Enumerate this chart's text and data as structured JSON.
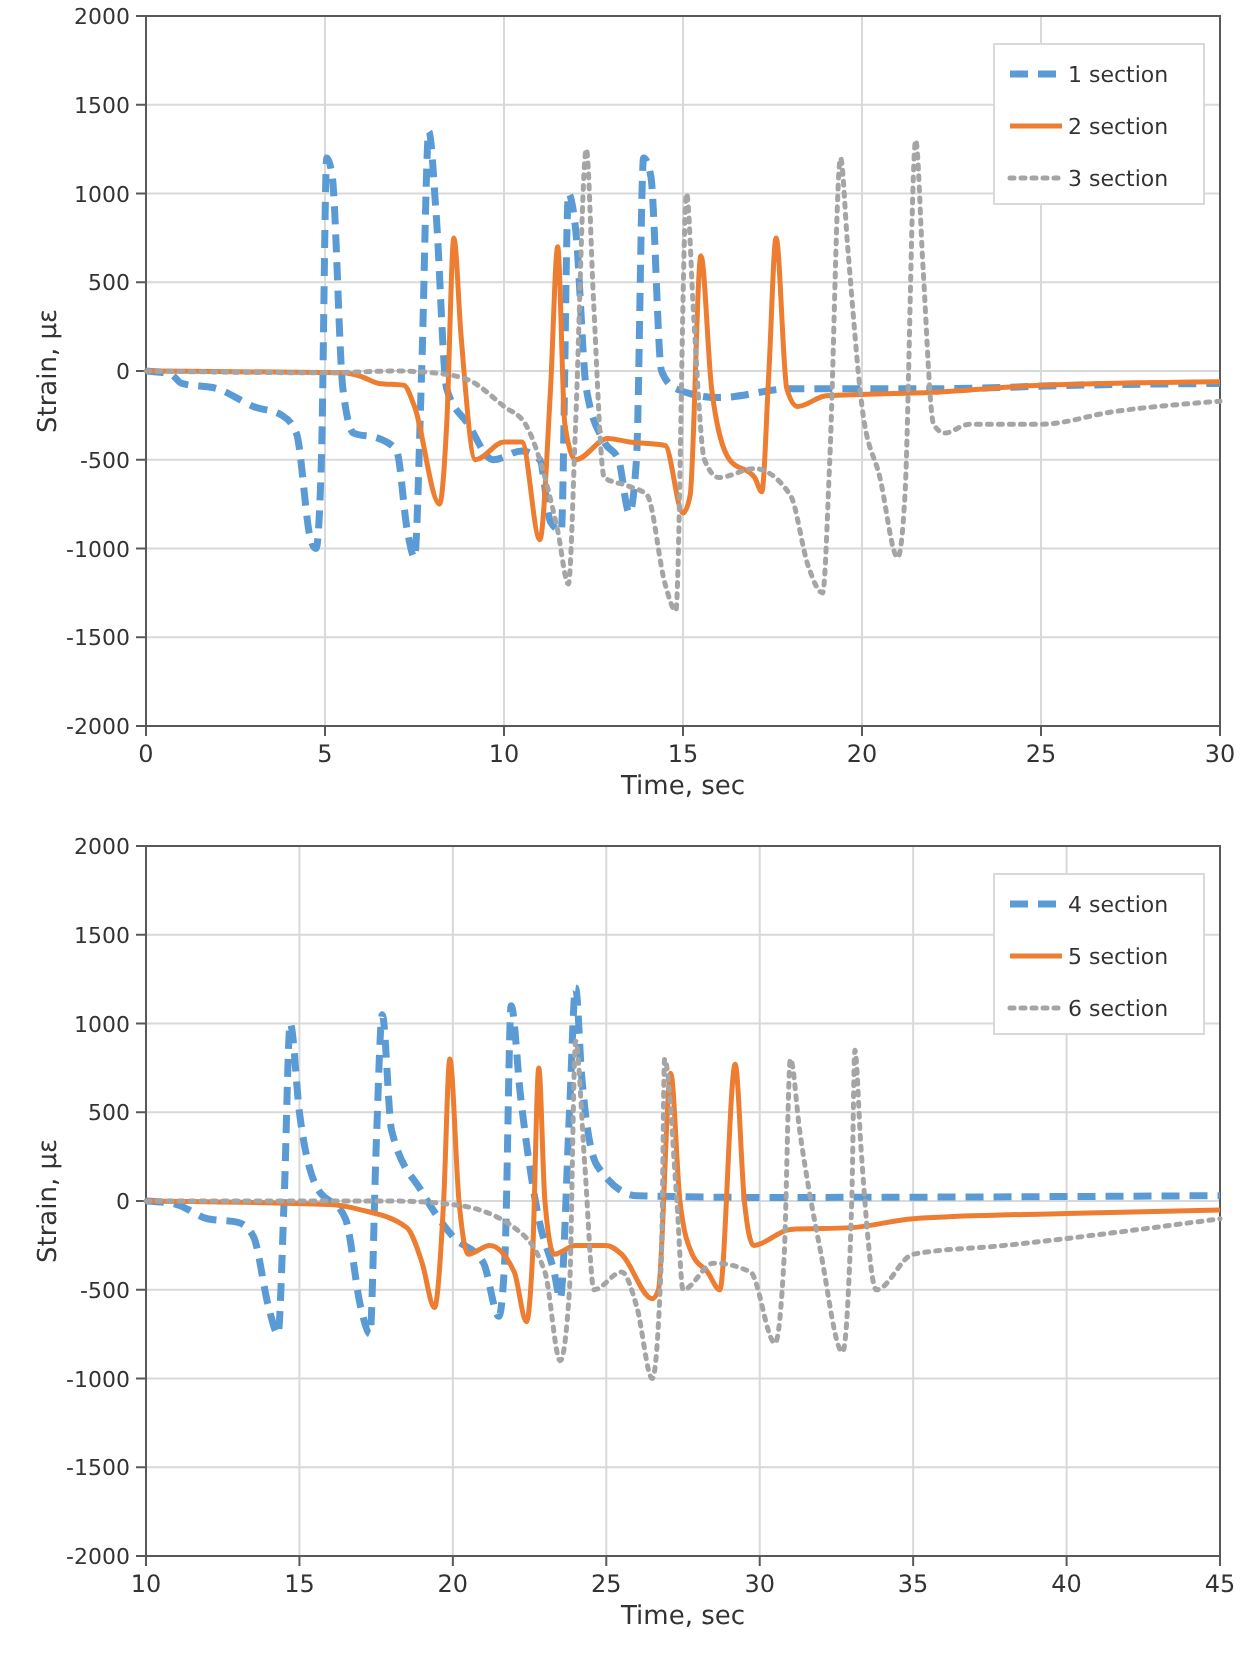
{
  "chart_data": [
    {
      "type": "line",
      "xlabel": "Time, sec",
      "ylabel": "Strain, με",
      "xlim": [
        0,
        30
      ],
      "xticks": [
        0,
        5,
        10,
        15,
        20,
        25,
        30
      ],
      "ylim": [
        -2000,
        2000
      ],
      "yticks": [
        -2000,
        -1500,
        -1000,
        -500,
        0,
        500,
        1000,
        1500,
        2000
      ],
      "grid": true,
      "legend": "top right",
      "marker": "none",
      "series": [
        {
          "name": "1 section",
          "color": "#5b9bd5",
          "line_style": "dashed",
          "x": [
            0,
            0.7,
            1,
            2,
            3,
            3.8,
            4.2,
            4.6,
            4.75,
            4.9,
            5.05,
            5.2,
            5.5,
            5.8,
            6.5,
            7,
            7.3,
            7.5,
            7.7,
            7.9,
            8.1,
            8.4,
            9,
            9.7,
            10.5,
            11,
            11.3,
            11.6,
            11.8,
            12,
            12.3,
            12.8,
            13.2,
            13.5,
            13.7,
            13.9,
            14.1,
            14.4,
            14.8,
            16,
            18,
            22,
            26,
            30
          ],
          "values": [
            0,
            -20,
            -70,
            -100,
            -200,
            -250,
            -350,
            -950,
            -1000,
            -500,
            1200,
            1100,
            -100,
            -350,
            -380,
            -450,
            -900,
            -1050,
            0,
            1350,
            900,
            -100,
            -300,
            -500,
            -450,
            -500,
            -850,
            -900,
            1000,
            800,
            -100,
            -400,
            -500,
            -800,
            -500,
            1200,
            1100,
            0,
            -100,
            -150,
            -100,
            -100,
            -80,
            -70
          ]
        },
        {
          "name": "2 section",
          "color": "#ed7d31",
          "line_style": "solid",
          "x": [
            0,
            5.5,
            6,
            6.5,
            7.2,
            7.5,
            8.2,
            8.4,
            8.6,
            8.8,
            9.2,
            10,
            10.5,
            11,
            11.3,
            11.5,
            11.7,
            12,
            12.9,
            13.5,
            14.5,
            15,
            15.2,
            15.5,
            15.8,
            16.3,
            17,
            17.2,
            17.4,
            17.6,
            17.9,
            18.2,
            19,
            22,
            25,
            30
          ],
          "values": [
            0,
            -10,
            -30,
            -70,
            -80,
            -200,
            -750,
            -300,
            750,
            200,
            -500,
            -400,
            -400,
            -950,
            -100,
            700,
            -300,
            -500,
            -380,
            -400,
            -420,
            -800,
            -700,
            650,
            -100,
            -500,
            -600,
            -680,
            0,
            750,
            -100,
            -200,
            -140,
            -120,
            -80,
            -60
          ]
        },
        {
          "name": "3 section",
          "color": "#a5a5a5",
          "line_style": "dotted",
          "x": [
            0,
            5,
            7,
            8,
            9,
            10,
            10.6,
            11,
            11.5,
            11.8,
            12,
            12.3,
            12.5,
            12.8,
            13.5,
            14,
            14.5,
            14.8,
            15.1,
            15.3,
            15.6,
            16,
            17,
            18,
            18.5,
            18.9,
            19.1,
            19.4,
            19.6,
            20,
            20.5,
            21,
            21.2,
            21.5,
            21.7,
            22,
            22.3,
            23,
            25,
            27,
            30
          ],
          "values": [
            0,
            -10,
            0,
            -10,
            -50,
            -200,
            -300,
            -500,
            -900,
            -1200,
            -300,
            1250,
            400,
            -600,
            -650,
            -700,
            -1200,
            -1350,
            1000,
            300,
            -500,
            -600,
            -550,
            -700,
            -1100,
            -1250,
            -500,
            1200,
            700,
            -200,
            -600,
            -1050,
            -700,
            1300,
            600,
            -300,
            -350,
            -300,
            -300,
            -230,
            -170
          ]
        }
      ]
    },
    {
      "type": "line",
      "xlabel": "Time, sec",
      "ylabel": "Strain, με",
      "xlim": [
        10,
        45
      ],
      "xticks": [
        10,
        15,
        20,
        25,
        30,
        35,
        40,
        45
      ],
      "ylim": [
        -2000,
        2000
      ],
      "yticks": [
        -2000,
        -1500,
        -1000,
        -500,
        0,
        500,
        1000,
        1500,
        2000
      ],
      "grid": true,
      "legend": "top right",
      "marker": "none",
      "series": [
        {
          "name": "4 section",
          "color": "#5b9bd5",
          "line_style": "dashed",
          "x": [
            10,
            11,
            12,
            13,
            13.5,
            14,
            14.3,
            14.5,
            14.7,
            15,
            15.5,
            16.5,
            17,
            17.3,
            17.5,
            17.7,
            18,
            19,
            20,
            21,
            21.5,
            21.7,
            21.9,
            22.2,
            22.8,
            23.3,
            23.5,
            23.8,
            24,
            24.2,
            24.7,
            26,
            30,
            45
          ],
          "values": [
            0,
            -20,
            -100,
            -120,
            -200,
            -600,
            -750,
            0,
            1000,
            500,
            100,
            -100,
            -600,
            -750,
            300,
            1050,
            400,
            50,
            -200,
            -350,
            -650,
            -300,
            1100,
            600,
            -100,
            -400,
            -550,
            500,
            1200,
            700,
            200,
            30,
            20,
            30
          ]
        },
        {
          "name": "5 section",
          "color": "#ed7d31",
          "line_style": "solid",
          "x": [
            10,
            16,
            17,
            18.5,
            19,
            19.4,
            19.7,
            19.9,
            20.2,
            20.5,
            21.2,
            22,
            22.4,
            22.6,
            22.8,
            23,
            23.3,
            24,
            25,
            25.5,
            26.5,
            26.7,
            27.1,
            27.4,
            27.8,
            28.3,
            28.7,
            29.2,
            29.5,
            29.8,
            31,
            33,
            35,
            40,
            45
          ],
          "values": [
            0,
            -20,
            -50,
            -150,
            -350,
            -600,
            0,
            800,
            0,
            -300,
            -250,
            -400,
            -680,
            -300,
            750,
            0,
            -300,
            -250,
            -250,
            -300,
            -550,
            -500,
            720,
            0,
            -300,
            -400,
            -500,
            770,
            0,
            -250,
            -160,
            -150,
            -100,
            -70,
            -50
          ]
        },
        {
          "name": "6 section",
          "color": "#a5a5a5",
          "line_style": "dotted",
          "x": [
            10,
            18,
            20,
            22,
            23,
            23.5,
            23.8,
            24,
            24.3,
            24.6,
            25.5,
            26,
            26.5,
            26.8,
            26.9,
            27.3,
            27.5,
            28.5,
            29.7,
            30.5,
            30.8,
            31,
            31.3,
            32,
            32.7,
            33,
            33.1,
            33.3,
            33.8,
            35,
            38,
            45
          ],
          "values": [
            0,
            0,
            -20,
            -150,
            -400,
            -900,
            -500,
            900,
            200,
            -500,
            -400,
            -600,
            -1000,
            -300,
            800,
            0,
            -500,
            -350,
            -400,
            -800,
            -300,
            800,
            400,
            -300,
            -850,
            0,
            850,
            300,
            -500,
            -300,
            -250,
            -100
          ]
        }
      ]
    }
  ]
}
